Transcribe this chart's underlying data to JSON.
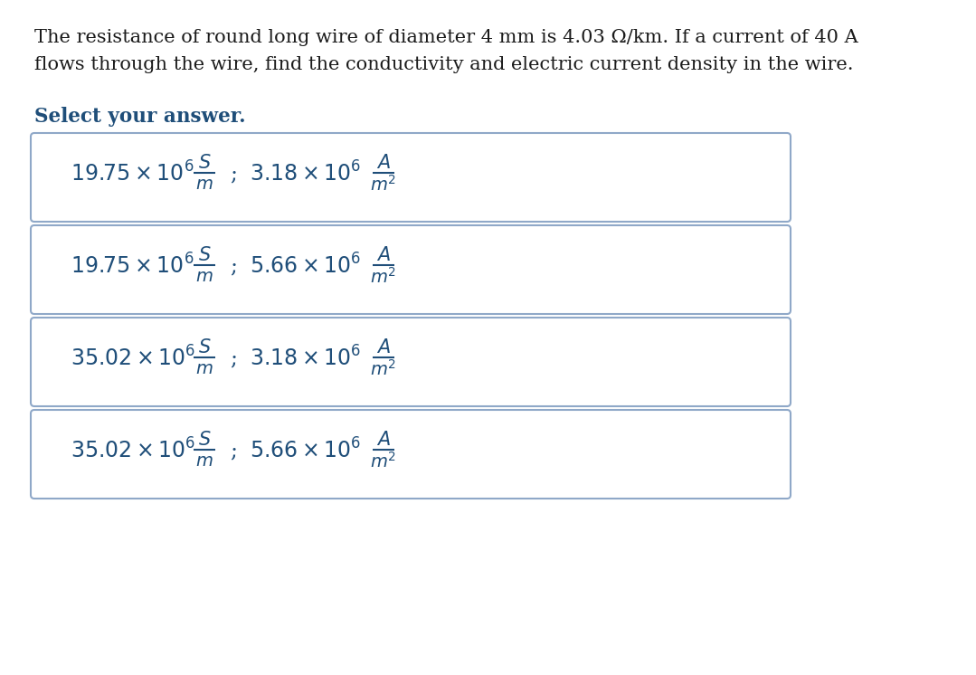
{
  "background_color": "#ffffff",
  "question_line1": "The resistance of round long wire of diameter 4 mm is 4.03 Ω/km. If a current of 40 A",
  "question_line2": "flows through the wire, find the conductivity and electric current density in the wire.",
  "select_text": "Select your answer.",
  "options": [
    {
      "cond1": "19.75",
      "cond2": "3.18"
    },
    {
      "cond1": "19.75",
      "cond2": "5.66"
    },
    {
      "cond1": "35.02",
      "cond2": "3.18"
    },
    {
      "cond1": "35.02",
      "cond2": "5.66"
    }
  ],
  "text_color": "#1a1a1a",
  "select_color": "#1f4e79",
  "option_color": "#1f4e79",
  "box_border_color": "#8fa8c8",
  "fig_width": 10.79,
  "fig_height": 7.46,
  "dpi": 100
}
